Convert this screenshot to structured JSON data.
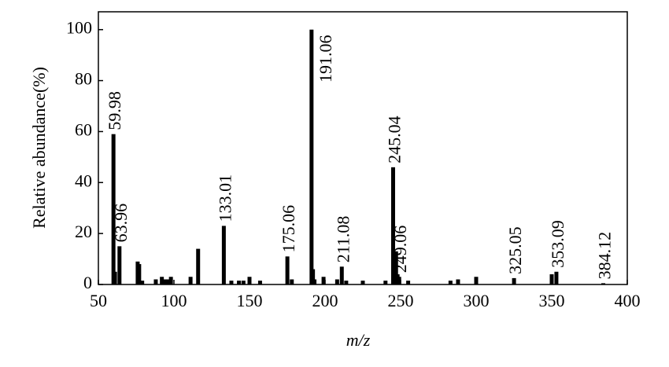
{
  "chart_data": {
    "type": "bar",
    "x_label": "m/z",
    "y_label": "Relative abundance(%)",
    "color": "#000000",
    "x": [
      59.98,
      61,
      63.96,
      76,
      77,
      79,
      88,
      92,
      94,
      96,
      98,
      111,
      116,
      133.01,
      138,
      143,
      146,
      150,
      157,
      175.06,
      178,
      191.06,
      192,
      193,
      199,
      208,
      211.08,
      214,
      225,
      240,
      245.04,
      247,
      248,
      249.06,
      255,
      283,
      288,
      300,
      325.05,
      350,
      353.09,
      384.12
    ],
    "values": [
      59,
      5,
      15,
      9,
      8,
      1.5,
      2,
      3,
      2,
      2,
      3,
      3,
      14,
      23,
      1.5,
      1.5,
      1.5,
      3,
      1.5,
      11,
      2,
      100,
      6,
      2,
      3,
      2,
      7,
      1.5,
      1.5,
      1.5,
      46,
      13,
      4,
      3,
      1.5,
      1.5,
      2,
      3,
      2.5,
      4,
      5,
      0.5
    ],
    "annotations": [
      59.98,
      63.96,
      133.01,
      175.06,
      191.06,
      211.08,
      245.04,
      249.06,
      325.05,
      353.09,
      384.12
    ],
    "xlim": [
      50,
      400
    ],
    "xticks": [
      50,
      100,
      150,
      200,
      250,
      300,
      350,
      400
    ],
    "ylim": [
      0,
      107
    ],
    "yticks": [
      0,
      20,
      40,
      60,
      80,
      100
    ]
  }
}
